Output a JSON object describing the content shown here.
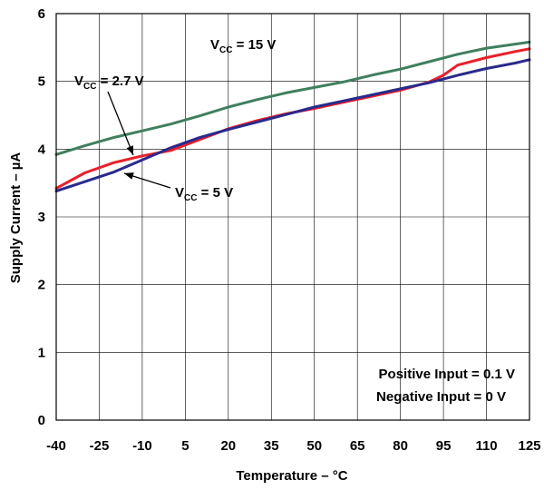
{
  "chart_data": {
    "type": "line",
    "xlabel": "Temperature – °C",
    "ylabel": "Supply Current – µA",
    "xlim": [
      -40,
      125
    ],
    "ylim": [
      0,
      6
    ],
    "x_ticks": [
      -40,
      -25,
      -10,
      5,
      20,
      35,
      50,
      65,
      80,
      95,
      110,
      125
    ],
    "y_ticks": [
      0,
      1,
      2,
      3,
      4,
      5,
      6
    ],
    "grid": true,
    "colors": {
      "vcc15": "#3f7f5f",
      "vcc27": "#e8202a",
      "vcc5": "#2a2a8c",
      "grid": "#000000"
    },
    "series": [
      {
        "key": "vcc15",
        "x": [
          -40,
          -30,
          -20,
          -10,
          0,
          10,
          20,
          30,
          40,
          50,
          60,
          70,
          80,
          90,
          100,
          110,
          120,
          125
        ],
        "values": [
          3.92,
          4.05,
          4.17,
          4.27,
          4.37,
          4.49,
          4.62,
          4.73,
          4.83,
          4.91,
          4.99,
          5.09,
          5.18,
          5.29,
          5.4,
          5.49,
          5.55,
          5.58
        ]
      },
      {
        "key": "vcc27",
        "x": [
          -40,
          -30,
          -20,
          -10,
          0,
          10,
          20,
          30,
          40,
          50,
          60,
          70,
          80,
          90,
          95,
          100,
          110,
          120,
          125
        ],
        "values": [
          3.42,
          3.65,
          3.8,
          3.9,
          3.98,
          4.14,
          4.3,
          4.42,
          4.52,
          4.6,
          4.69,
          4.78,
          4.87,
          4.99,
          5.09,
          5.24,
          5.35,
          5.44,
          5.48
        ]
      },
      {
        "key": "vcc5",
        "x": [
          -40,
          -30,
          -20,
          -10,
          0,
          10,
          20,
          30,
          40,
          50,
          60,
          70,
          80,
          90,
          100,
          110,
          120,
          125
        ],
        "values": [
          3.38,
          3.52,
          3.66,
          3.84,
          4.02,
          4.17,
          4.29,
          4.4,
          4.51,
          4.62,
          4.71,
          4.8,
          4.89,
          4.98,
          5.09,
          5.19,
          5.27,
          5.32
        ]
      }
    ],
    "annotations": [
      {
        "key": "vcc15",
        "main": "V",
        "sub": "CC",
        "rest": " = 15 V"
      },
      {
        "key": "vcc27",
        "main": "V",
        "sub": "CC",
        "rest": " = 2.7 V"
      },
      {
        "key": "vcc5",
        "main": "V",
        "sub": "CC",
        "rest": " = 5 V"
      }
    ],
    "notes": [
      "Positive Input = 0.1 V",
      "Negative Input = 0 V"
    ]
  }
}
